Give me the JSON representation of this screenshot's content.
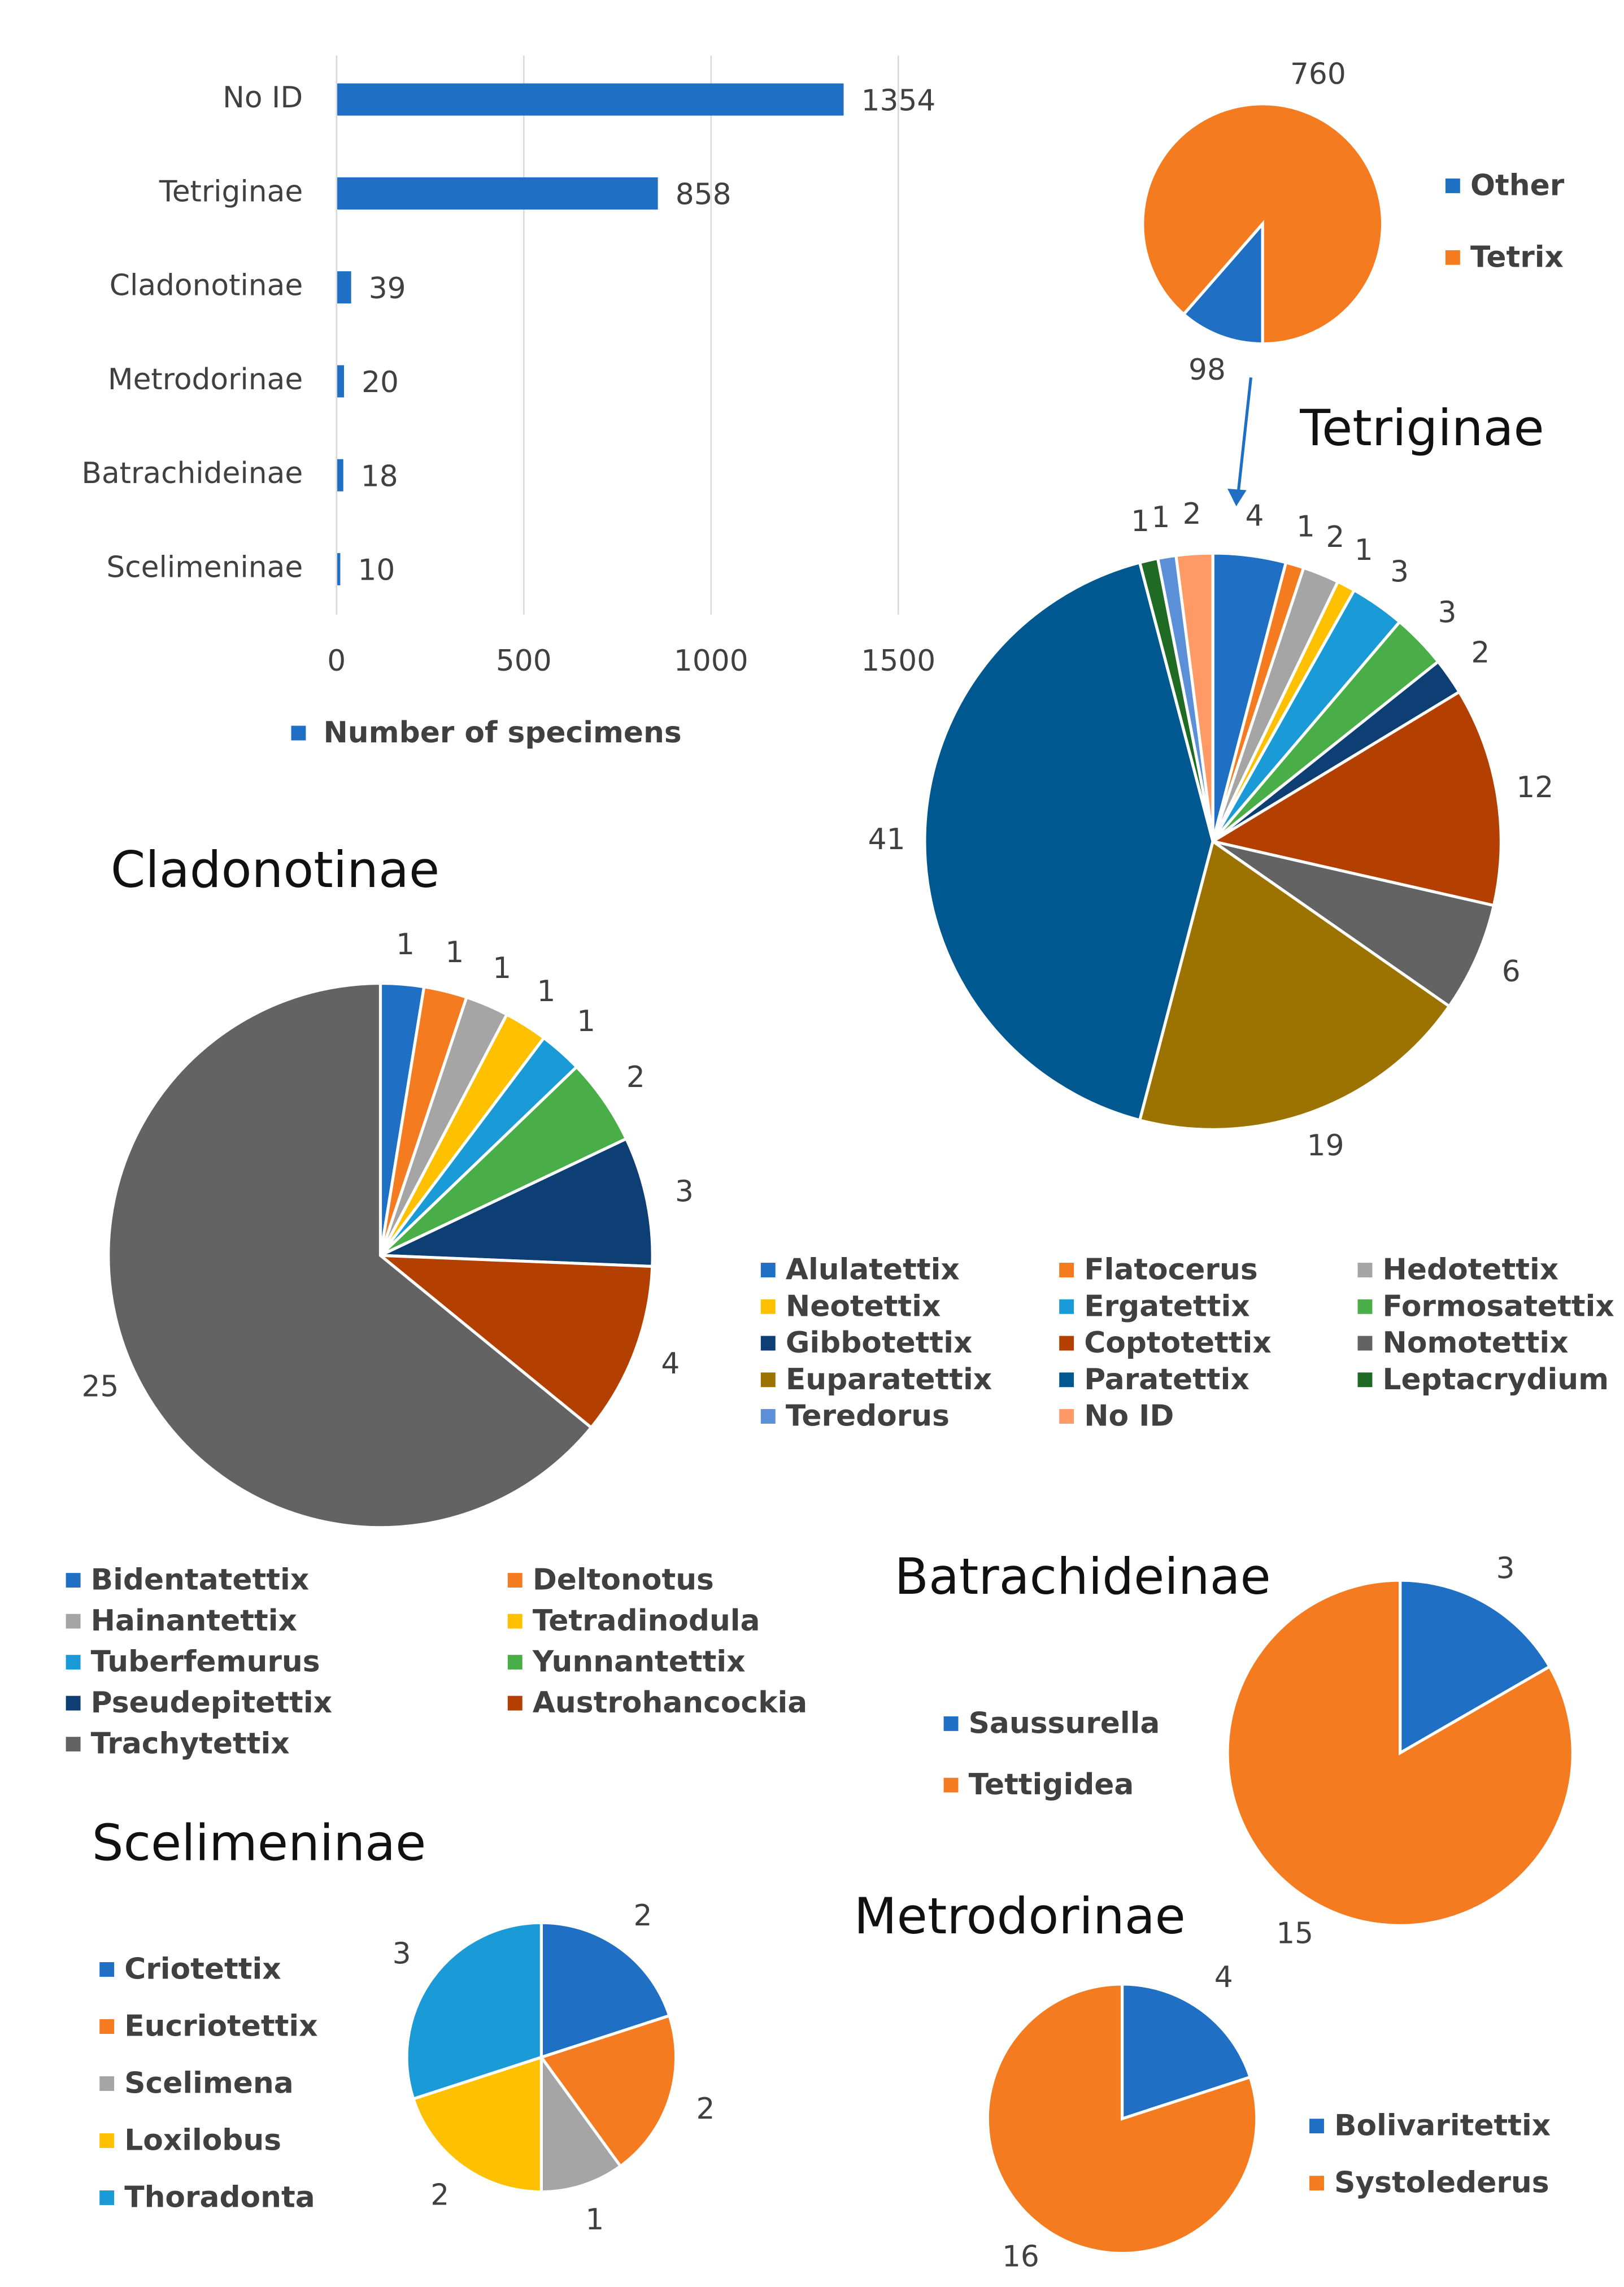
{
  "chart_data": [
    {
      "type": "bar",
      "orientation": "horizontal",
      "categories": [
        "No ID",
        "Tetriginae",
        "Cladonotinae",
        "Metrodorinae",
        "Batrachideinae",
        "Scelimeninae"
      ],
      "series": [
        {
          "name": "Number of specimens",
          "color": "#1f6fc5",
          "values": [
            1354,
            858,
            39,
            20,
            18,
            10
          ]
        }
      ],
      "xlim": [
        0,
        1500
      ],
      "xticks": [
        0,
        500,
        1000,
        1500
      ],
      "grid": true,
      "legend": "bottom"
    },
    {
      "type": "pie",
      "categories": [
        "Other",
        "Tetrix"
      ],
      "values": [
        98,
        760
      ],
      "colors": [
        "#1f6fc5",
        "#f47b20"
      ],
      "start_angle": 180,
      "legend": "right"
    },
    {
      "type": "pie",
      "title": "Tetriginae",
      "categories": [
        "Alulatettix",
        "Flatocerus",
        "Hedotettix",
        "Neotettix",
        "Ergatettix",
        "Formosatettix",
        "Gibbotettix",
        "Coptotettix",
        "Nomotettix",
        "Euparatettix",
        "Paratettix",
        "Leptacrydium",
        "Teredorus",
        "No ID"
      ],
      "values": [
        4,
        1,
        2,
        1,
        3,
        3,
        2,
        12,
        6,
        19,
        41,
        1,
        1,
        2
      ],
      "colors": [
        "#1f6fc5",
        "#f47b20",
        "#a5a5a5",
        "#ffc000",
        "#1a9ad6",
        "#4aae48",
        "#0d3f74",
        "#b34000",
        "#636363",
        "#9c7200",
        "#005891",
        "#1f6b23",
        "#5b8fd8",
        "#ff9a66"
      ],
      "legend": "bottom"
    },
    {
      "type": "pie",
      "title": "Cladonotinae",
      "categories": [
        "Bidentatettix",
        "Deltonotus",
        "Hainantettix",
        "Tetradinodula",
        "Tuberfemurus",
        "Yunnantettix",
        "Pseudepitettix",
        "Austrohancockia",
        "Trachytettix"
      ],
      "values": [
        1,
        1,
        1,
        1,
        1,
        2,
        3,
        4,
        25
      ],
      "colors": [
        "#1f6fc5",
        "#f47b20",
        "#a5a5a5",
        "#ffc000",
        "#1a9ad6",
        "#4aae48",
        "#0d3f74",
        "#b34000",
        "#636363"
      ],
      "legend": "bottom"
    },
    {
      "type": "pie",
      "title": "Batrachideinae",
      "categories": [
        "Saussurella",
        "Tettigidea"
      ],
      "values": [
        3,
        15
      ],
      "colors": [
        "#1f6fc5",
        "#f47b20"
      ],
      "legend": "left"
    },
    {
      "type": "pie",
      "title": "Scelimeninae",
      "categories": [
        "Criotettix",
        "Eucriotettix",
        "Scelimena",
        "Loxilobus",
        "Thoradonta"
      ],
      "values": [
        2,
        2,
        1,
        2,
        3
      ],
      "colors": [
        "#1f6fc5",
        "#f47b20",
        "#a5a5a5",
        "#ffc000",
        "#1a9ad6"
      ],
      "legend": "left"
    },
    {
      "type": "pie",
      "title": "Metrodorinae",
      "categories": [
        "Bolivaritettix",
        "Systolederus"
      ],
      "values": [
        4,
        16
      ],
      "colors": [
        "#1f6fc5",
        "#f47b20"
      ],
      "legend": "right"
    }
  ]
}
